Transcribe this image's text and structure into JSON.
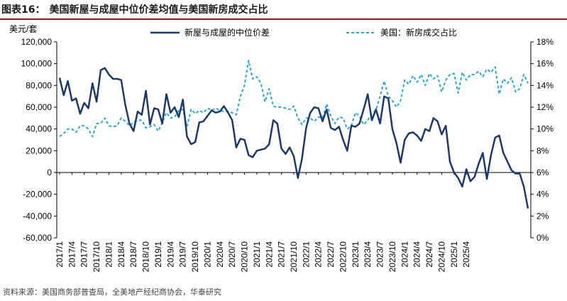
{
  "figure_label": "图表16：",
  "title": "美国新屋与成屋中位价差均值与美国新房成交占比",
  "source": "资料来源：美国商务部普查局，全美地产经纪商协会，华泰研究",
  "colors": {
    "series1": "#1b3a6b",
    "series2": "#2aa7d6",
    "rule": "#7f1f24"
  },
  "chart_data": {
    "type": "line",
    "left_axis": {
      "unit_label": "美元/套",
      "min": -60000,
      "max": 120000,
      "step": 20000,
      "tick_labels": [
        "120,000",
        "100,000",
        "80,000",
        "60,000",
        "40,000",
        "20,000",
        "0",
        "-20,000",
        "-40,000",
        "-60,000"
      ]
    },
    "right_axis": {
      "min": 0,
      "max": 18,
      "step": 2,
      "tick_labels": [
        "18%",
        "16%",
        "14%",
        "12%",
        "10%",
        "8%",
        "6%",
        "4%",
        "2%",
        "0%"
      ]
    },
    "x_tick_labels": [
      "2017/1",
      "2017/4",
      "2017/7",
      "2017/10",
      "2018/1",
      "2018/4",
      "2018/7",
      "2018/10",
      "2019/1",
      "2019/4",
      "2019/7",
      "2019/10",
      "2020/1",
      "2020/4",
      "2020/7",
      "2020/10",
      "2021/1",
      "2021/4",
      "2021/7",
      "2021/10",
      "2022/1",
      "2022/4",
      "2022/7",
      "2022/10",
      "2023/1",
      "2023/4",
      "2023/7",
      "2023/10",
      "2024/1",
      "2024/4",
      "2024/7",
      "2024/10",
      "2025/1",
      "2025/4"
    ],
    "legend_position": "top",
    "series": [
      {
        "name": "新屋与成屋的中位价差",
        "axis": "left",
        "style": "solid",
        "values": [
          87000,
          71000,
          84000,
          66000,
          68000,
          54000,
          64000,
          59000,
          82000,
          65000,
          94000,
          96000,
          90000,
          86000,
          86000,
          85000,
          62000,
          45000,
          38000,
          56000,
          53000,
          75000,
          44000,
          59000,
          58000,
          45000,
          72000,
          55000,
          60000,
          51000,
          67000,
          33000,
          26000,
          28000,
          46000,
          47000,
          52000,
          57000,
          55000,
          56000,
          61000,
          55000,
          48000,
          23000,
          31000,
          30000,
          16000,
          14000,
          20000,
          21000,
          22000,
          26000,
          48000,
          45000,
          22000,
          17000,
          23000,
          15000,
          -5000,
          13000,
          41000,
          55000,
          60000,
          59000,
          47000,
          58000,
          41000,
          39000,
          42000,
          30000,
          20000,
          43000,
          42000,
          45000,
          58000,
          72000,
          48000,
          58000,
          45000,
          70000,
          68000,
          40000,
          27000,
          9000,
          30000,
          36000,
          37000,
          34000,
          29000,
          40000,
          38000,
          50000,
          47000,
          35000,
          43000,
          10000,
          0,
          -5000,
          -13000,
          3000,
          -8000,
          -4000,
          8000,
          18000,
          -6000,
          16000,
          32000,
          34000,
          18000,
          10000,
          2000,
          -1000,
          -1000,
          -13000,
          -33000
        ]
      },
      {
        "name": "美国：新房成交占比",
        "axis": "right",
        "style": "dashed",
        "values": [
          9.3,
          9.6,
          10.0,
          10.0,
          9.7,
          10.3,
          10.3,
          10.0,
          9.3,
          10.5,
          10.5,
          11.0,
          10.3,
          10.2,
          10.3,
          11.0,
          10.7,
          10.3,
          10.6,
          10.8,
          10.8,
          10.1,
          10.2,
          10.4,
          9.8,
          10.6,
          11.5,
          11.0,
          11.1,
          11.7,
          11.8,
          10.2,
          11.8,
          11.4,
          11.7,
          11.5,
          11.9,
          11.7,
          11.9,
          11.7,
          11.6,
          11.6,
          11.5,
          11.3,
          13.0,
          14.0,
          16.3,
          14.6,
          14.8,
          14.2,
          12.5,
          13.7,
          12.1,
          12.0,
          12.0,
          11.9,
          11.8,
          12.1,
          11.0,
          10.4,
          11.0,
          11.0,
          10.7,
          11.1,
          11.0,
          12.3,
          11.2,
          10.5,
          11.1,
          11.0,
          10.0,
          10.3,
          11.5,
          11.2,
          10.4,
          10.8,
          11.4,
          11.7,
          13.0,
          14.4,
          13.0,
          12.6,
          12.0,
          12.6,
          14.5,
          14.1,
          14.9,
          14.3,
          15.0,
          14.0,
          15.1,
          14.6,
          14.9,
          13.4,
          14.5,
          15.0,
          15.1,
          13.3,
          15.2,
          14.5,
          15.0,
          15.0,
          15.3,
          14.8,
          15.5,
          15.2,
          15.7,
          13.2,
          14.6,
          14.2,
          14.7,
          13.4,
          13.7,
          15.0,
          14.2
        ]
      }
    ]
  }
}
